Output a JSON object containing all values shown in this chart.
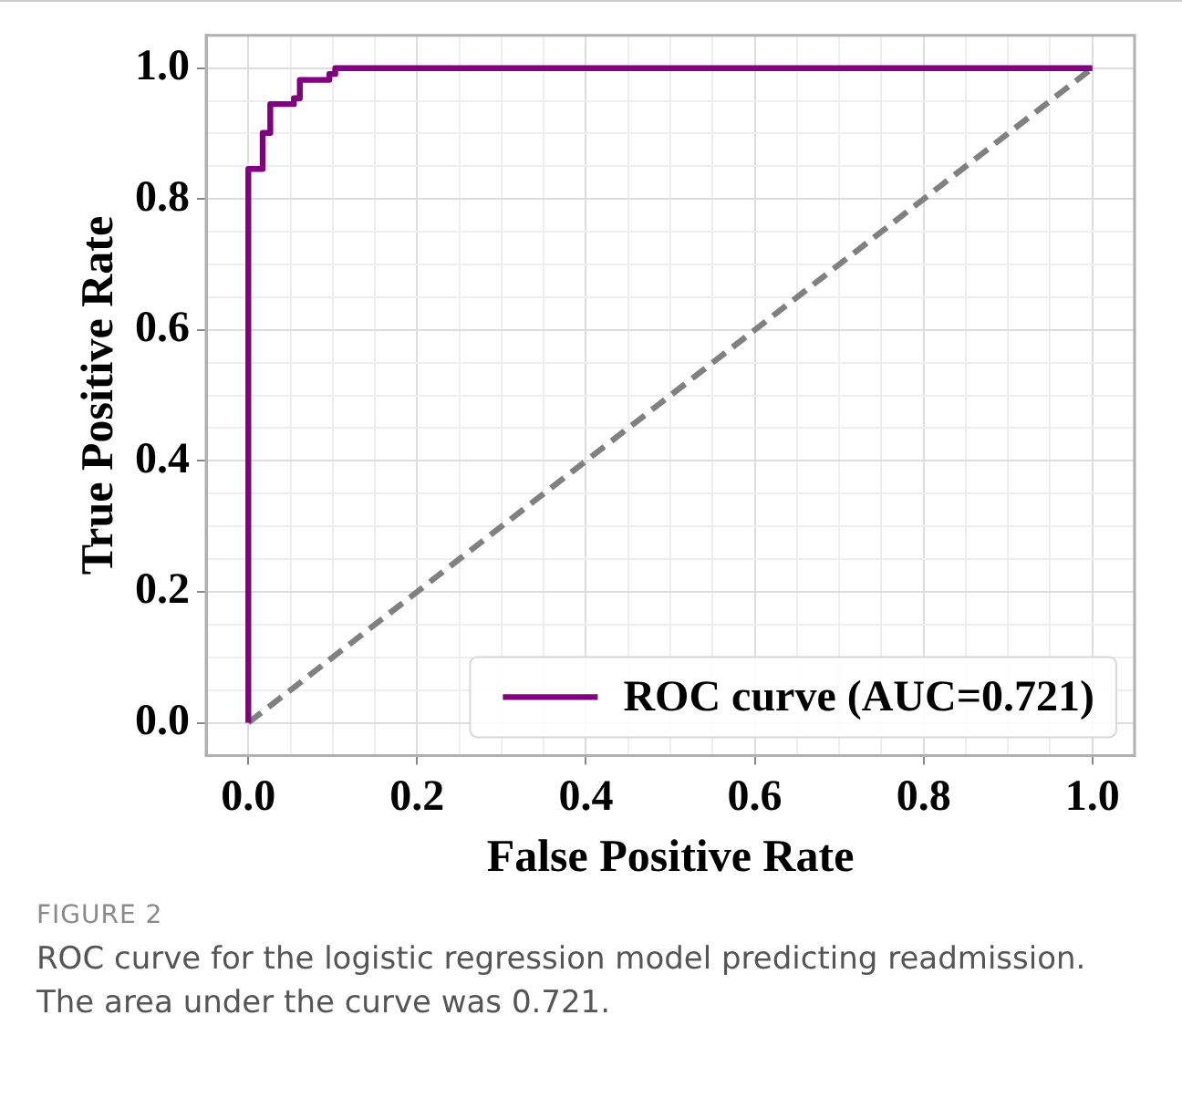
{
  "chart_data": {
    "type": "line",
    "xlabel": "False Positive Rate",
    "ylabel": "True Positive Rate",
    "xlim": [
      -0.05,
      1.05
    ],
    "ylim": [
      -0.05,
      1.05
    ],
    "xticks": [
      {
        "value": 0,
        "label": "0.0"
      },
      {
        "value": 0.05,
        "label": null
      },
      {
        "value": 0.1,
        "label": null
      },
      {
        "value": 0.15,
        "label": null
      },
      {
        "value": 0.2,
        "label": "0.2"
      },
      {
        "value": 0.25,
        "label": null
      },
      {
        "value": 0.3,
        "label": null
      },
      {
        "value": 0.35,
        "label": null
      },
      {
        "value": 0.4,
        "label": "0.4"
      },
      {
        "value": 0.45,
        "label": null
      },
      {
        "value": 0.5,
        "label": null
      },
      {
        "value": 0.55,
        "label": null
      },
      {
        "value": 0.6,
        "label": "0.6"
      },
      {
        "value": 0.65,
        "label": null
      },
      {
        "value": 0.7,
        "label": null
      },
      {
        "value": 0.75,
        "label": null
      },
      {
        "value": 0.8,
        "label": "0.8"
      },
      {
        "value": 0.85,
        "label": null
      },
      {
        "value": 0.9,
        "label": null
      },
      {
        "value": 0.95,
        "label": null
      },
      {
        "value": 1,
        "label": "1.0"
      }
    ],
    "yticks": [
      {
        "value": 0,
        "label": "0.0"
      },
      {
        "value": 0.05,
        "label": null
      },
      {
        "value": 0.1,
        "label": null
      },
      {
        "value": 0.15,
        "label": null
      },
      {
        "value": 0.2,
        "label": "0.2"
      },
      {
        "value": 0.25,
        "label": null
      },
      {
        "value": 0.3,
        "label": null
      },
      {
        "value": 0.35,
        "label": null
      },
      {
        "value": 0.4,
        "label": "0.4"
      },
      {
        "value": 0.45,
        "label": null
      },
      {
        "value": 0.5,
        "label": null
      },
      {
        "value": 0.55,
        "label": null
      },
      {
        "value": 0.6,
        "label": "0.6"
      },
      {
        "value": 0.65,
        "label": null
      },
      {
        "value": 0.7,
        "label": null
      },
      {
        "value": 0.75,
        "label": null
      },
      {
        "value": 0.8,
        "label": "0.8"
      },
      {
        "value": 0.85,
        "label": null
      },
      {
        "value": 0.9,
        "label": null
      },
      {
        "value": 0.95,
        "label": null
      },
      {
        "value": 1,
        "label": "1.0"
      }
    ],
    "grid": true,
    "legend": "bottom right",
    "marker": "none",
    "series": [
      {
        "name": "ROC curve (AUC=0.721)",
        "color": "#800080",
        "line_style": "solid",
        "x": [
          0,
          0,
          0.017,
          0.017,
          0.026,
          0.026,
          0.054,
          0.054,
          0.061,
          0.061,
          0.096,
          0.096,
          0.103,
          0.103,
          1
        ],
        "values": [
          0,
          0.846,
          0.846,
          0.901,
          0.901,
          0.945,
          0.945,
          0.954,
          0.954,
          0.982,
          0.982,
          0.991,
          0.991,
          1,
          1
        ]
      },
      {
        "color": "#808080",
        "line_style": "dashed",
        "x": [
          0,
          1
        ],
        "values": [
          0,
          1
        ]
      }
    ],
    "annotations": [
      "FIGURE 2",
      "ROC curve for the logistic regression model predicting readmission. The area under the curve was 0.721."
    ]
  }
}
